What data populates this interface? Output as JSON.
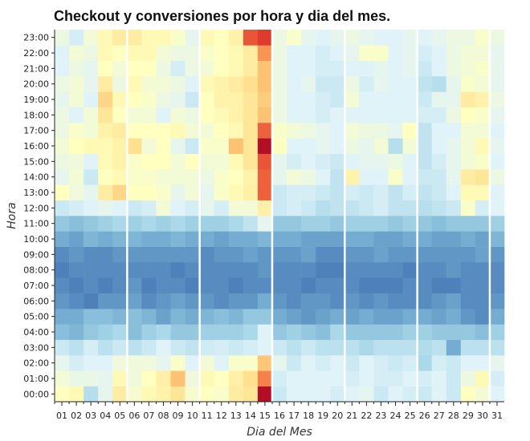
{
  "chart_data": {
    "type": "heatmap",
    "title": "Checkout y conversiones por hora y dia del mes.",
    "xlabel": "Dia del Mes",
    "ylabel": "Hora",
    "x_categories": [
      "01",
      "02",
      "03",
      "04",
      "05",
      "06",
      "07",
      "08",
      "09",
      "10",
      "11",
      "12",
      "13",
      "14",
      "15",
      "16",
      "17",
      "18",
      "19",
      "20",
      "21",
      "22",
      "23",
      "24",
      "25",
      "26",
      "27",
      "28",
      "29",
      "30",
      "31"
    ],
    "y_categories": [
      "00:00",
      "01:00",
      "02:00",
      "03:00",
      "04:00",
      "05:00",
      "06:00",
      "07:00",
      "08:00",
      "09:00",
      "10:00",
      "11:00",
      "12:00",
      "13:00",
      "14:00",
      "15:00",
      "16:00",
      "17:00",
      "18:00",
      "19:00",
      "20:00",
      "21:00",
      "22:00",
      "23:00"
    ],
    "values": [
      [
        0.5,
        0.52,
        0.32,
        0.42,
        0.56,
        0.47,
        0.52,
        0.54,
        0.58,
        0.47,
        0.5,
        0.48,
        0.56,
        0.58,
        0.97,
        0.36,
        0.4,
        0.4,
        0.4,
        0.38,
        0.4,
        0.42,
        0.36,
        0.4,
        0.38,
        0.36,
        0.4,
        0.36,
        0.5,
        0.46,
        0.4
      ],
      [
        0.46,
        0.43,
        0.43,
        0.42,
        0.52,
        0.45,
        0.5,
        0.55,
        0.66,
        0.45,
        0.52,
        0.5,
        0.55,
        0.6,
        0.77,
        0.38,
        0.4,
        0.4,
        0.4,
        0.4,
        0.38,
        0.4,
        0.38,
        0.38,
        0.4,
        0.38,
        0.4,
        0.36,
        0.44,
        0.52,
        0.38
      ],
      [
        0.42,
        0.38,
        0.4,
        0.4,
        0.45,
        0.45,
        0.45,
        0.42,
        0.48,
        0.4,
        0.46,
        0.4,
        0.48,
        0.48,
        0.65,
        0.42,
        0.36,
        0.4,
        0.38,
        0.4,
        0.36,
        0.4,
        0.38,
        0.36,
        0.38,
        0.3,
        0.38,
        0.36,
        0.4,
        0.4,
        0.42
      ],
      [
        0.36,
        0.33,
        0.38,
        0.33,
        0.36,
        0.33,
        0.36,
        0.4,
        0.36,
        0.34,
        0.37,
        0.38,
        0.36,
        0.38,
        0.4,
        0.36,
        0.33,
        0.36,
        0.33,
        0.33,
        0.33,
        0.3,
        0.33,
        0.33,
        0.33,
        0.31,
        0.33,
        0.2,
        0.33,
        0.33,
        0.33
      ],
      [
        0.24,
        0.22,
        0.26,
        0.28,
        0.3,
        0.24,
        0.28,
        0.3,
        0.26,
        0.26,
        0.28,
        0.28,
        0.28,
        0.3,
        0.4,
        0.26,
        0.28,
        0.26,
        0.24,
        0.3,
        0.26,
        0.26,
        0.26,
        0.26,
        0.28,
        0.28,
        0.26,
        0.26,
        0.26,
        0.24,
        0.28
      ],
      [
        0.2,
        0.2,
        0.24,
        0.24,
        0.22,
        0.24,
        0.22,
        0.18,
        0.22,
        0.2,
        0.22,
        0.24,
        0.22,
        0.26,
        0.26,
        0.2,
        0.18,
        0.16,
        0.18,
        0.2,
        0.18,
        0.2,
        0.18,
        0.18,
        0.2,
        0.2,
        0.18,
        0.2,
        0.16,
        0.14,
        0.2
      ],
      [
        0.16,
        0.14,
        0.12,
        0.16,
        0.16,
        0.18,
        0.14,
        0.16,
        0.18,
        0.16,
        0.16,
        0.14,
        0.16,
        0.16,
        0.2,
        0.16,
        0.14,
        0.16,
        0.16,
        0.14,
        0.16,
        0.14,
        0.16,
        0.14,
        0.14,
        0.14,
        0.16,
        0.18,
        0.14,
        0.14,
        0.16
      ],
      [
        0.14,
        0.12,
        0.14,
        0.12,
        0.14,
        0.16,
        0.12,
        0.14,
        0.14,
        0.12,
        0.14,
        0.14,
        0.12,
        0.14,
        0.14,
        0.14,
        0.14,
        0.12,
        0.14,
        0.14,
        0.14,
        0.12,
        0.12,
        0.12,
        0.14,
        0.14,
        0.12,
        0.12,
        0.14,
        0.14,
        0.14
      ],
      [
        0.12,
        0.14,
        0.14,
        0.14,
        0.14,
        0.14,
        0.14,
        0.14,
        0.12,
        0.14,
        0.14,
        0.14,
        0.14,
        0.14,
        0.16,
        0.14,
        0.14,
        0.14,
        0.12,
        0.12,
        0.14,
        0.14,
        0.14,
        0.14,
        0.12,
        0.14,
        0.14,
        0.16,
        0.14,
        0.14,
        0.14
      ],
      [
        0.14,
        0.16,
        0.14,
        0.14,
        0.16,
        0.16,
        0.16,
        0.16,
        0.16,
        0.16,
        0.14,
        0.16,
        0.16,
        0.18,
        0.16,
        0.16,
        0.16,
        0.18,
        0.14,
        0.14,
        0.16,
        0.16,
        0.18,
        0.16,
        0.16,
        0.16,
        0.16,
        0.16,
        0.16,
        0.18,
        0.16
      ],
      [
        0.2,
        0.18,
        0.22,
        0.2,
        0.22,
        0.22,
        0.2,
        0.2,
        0.22,
        0.2,
        0.2,
        0.18,
        0.2,
        0.2,
        0.22,
        0.2,
        0.2,
        0.18,
        0.18,
        0.18,
        0.2,
        0.2,
        0.18,
        0.18,
        0.2,
        0.2,
        0.18,
        0.18,
        0.2,
        0.18,
        0.22
      ],
      [
        0.26,
        0.24,
        0.26,
        0.28,
        0.3,
        0.28,
        0.3,
        0.28,
        0.3,
        0.28,
        0.28,
        0.28,
        0.3,
        0.34,
        0.42,
        0.26,
        0.26,
        0.28,
        0.28,
        0.26,
        0.28,
        0.28,
        0.28,
        0.26,
        0.28,
        0.26,
        0.24,
        0.26,
        0.26,
        0.26,
        0.28
      ],
      [
        0.36,
        0.38,
        0.4,
        0.42,
        0.4,
        0.36,
        0.38,
        0.46,
        0.4,
        0.38,
        0.42,
        0.38,
        0.46,
        0.46,
        0.55,
        0.36,
        0.38,
        0.36,
        0.32,
        0.34,
        0.34,
        0.36,
        0.38,
        0.34,
        0.34,
        0.32,
        0.34,
        0.36,
        0.48,
        0.38,
        0.4
      ],
      [
        0.5,
        0.45,
        0.42,
        0.56,
        0.62,
        0.5,
        0.5,
        0.48,
        0.42,
        0.46,
        0.42,
        0.48,
        0.52,
        0.55,
        0.82,
        0.36,
        0.38,
        0.38,
        0.36,
        0.34,
        0.38,
        0.36,
        0.38,
        0.34,
        0.38,
        0.34,
        0.36,
        0.4,
        0.52,
        0.52,
        0.4
      ],
      [
        0.42,
        0.46,
        0.36,
        0.5,
        0.52,
        0.48,
        0.48,
        0.46,
        0.46,
        0.46,
        0.44,
        0.48,
        0.5,
        0.54,
        0.82,
        0.42,
        0.46,
        0.44,
        0.4,
        0.34,
        0.54,
        0.4,
        0.4,
        0.48,
        0.4,
        0.36,
        0.36,
        0.42,
        0.56,
        0.58,
        0.44
      ],
      [
        0.44,
        0.45,
        0.4,
        0.52,
        0.54,
        0.48,
        0.5,
        0.5,
        0.46,
        0.5,
        0.46,
        0.46,
        0.52,
        0.58,
        0.84,
        0.42,
        0.38,
        0.4,
        0.38,
        0.36,
        0.4,
        0.42,
        0.42,
        0.44,
        0.4,
        0.34,
        0.38,
        0.42,
        0.46,
        0.48,
        0.4
      ],
      [
        0.46,
        0.5,
        0.52,
        0.52,
        0.54,
        0.6,
        0.46,
        0.5,
        0.42,
        0.36,
        0.48,
        0.48,
        0.66,
        0.58,
        0.97,
        0.5,
        0.4,
        0.4,
        0.42,
        0.4,
        0.44,
        0.42,
        0.46,
        0.32,
        0.46,
        0.34,
        0.4,
        0.42,
        0.46,
        0.52,
        0.42
      ],
      [
        0.44,
        0.48,
        0.46,
        0.54,
        0.56,
        0.5,
        0.5,
        0.5,
        0.52,
        0.46,
        0.46,
        0.5,
        0.52,
        0.58,
        0.82,
        0.48,
        0.46,
        0.44,
        0.42,
        0.4,
        0.46,
        0.44,
        0.44,
        0.42,
        0.5,
        0.34,
        0.4,
        0.4,
        0.46,
        0.46,
        0.4
      ],
      [
        0.44,
        0.4,
        0.46,
        0.58,
        0.5,
        0.46,
        0.46,
        0.4,
        0.46,
        0.44,
        0.5,
        0.52,
        0.54,
        0.58,
        0.66,
        0.44,
        0.4,
        0.4,
        0.38,
        0.4,
        0.4,
        0.4,
        0.4,
        0.4,
        0.4,
        0.38,
        0.38,
        0.44,
        0.5,
        0.48,
        0.42
      ],
      [
        0.42,
        0.46,
        0.4,
        0.62,
        0.52,
        0.5,
        0.48,
        0.44,
        0.42,
        0.36,
        0.5,
        0.54,
        0.54,
        0.58,
        0.64,
        0.44,
        0.4,
        0.4,
        0.38,
        0.36,
        0.46,
        0.4,
        0.4,
        0.4,
        0.4,
        0.36,
        0.42,
        0.42,
        0.56,
        0.54,
        0.44
      ],
      [
        0.44,
        0.46,
        0.42,
        0.56,
        0.44,
        0.52,
        0.46,
        0.46,
        0.44,
        0.4,
        0.52,
        0.54,
        0.56,
        0.6,
        0.66,
        0.44,
        0.4,
        0.42,
        0.36,
        0.36,
        0.44,
        0.38,
        0.42,
        0.4,
        0.4,
        0.34,
        0.32,
        0.42,
        0.48,
        0.46,
        0.42
      ],
      [
        0.4,
        0.44,
        0.42,
        0.5,
        0.46,
        0.5,
        0.5,
        0.44,
        0.38,
        0.44,
        0.46,
        0.5,
        0.52,
        0.56,
        0.66,
        0.44,
        0.4,
        0.4,
        0.38,
        0.38,
        0.4,
        0.4,
        0.42,
        0.4,
        0.42,
        0.36,
        0.4,
        0.44,
        0.46,
        0.48,
        0.42
      ],
      [
        0.4,
        0.46,
        0.44,
        0.52,
        0.5,
        0.52,
        0.52,
        0.46,
        0.44,
        0.44,
        0.48,
        0.5,
        0.52,
        0.56,
        0.74,
        0.44,
        0.4,
        0.4,
        0.38,
        0.4,
        0.42,
        0.48,
        0.48,
        0.4,
        0.42,
        0.38,
        0.4,
        0.44,
        0.46,
        0.46,
        0.42
      ],
      [
        0.44,
        0.38,
        0.46,
        0.52,
        0.56,
        0.56,
        0.52,
        0.52,
        0.48,
        0.42,
        0.52,
        0.5,
        0.54,
        0.84,
        0.88,
        0.44,
        0.48,
        0.42,
        0.4,
        0.42,
        0.44,
        0.42,
        0.4,
        0.4,
        0.42,
        0.4,
        0.42,
        0.44,
        0.44,
        0.48,
        0.44
      ]
    ]
  }
}
